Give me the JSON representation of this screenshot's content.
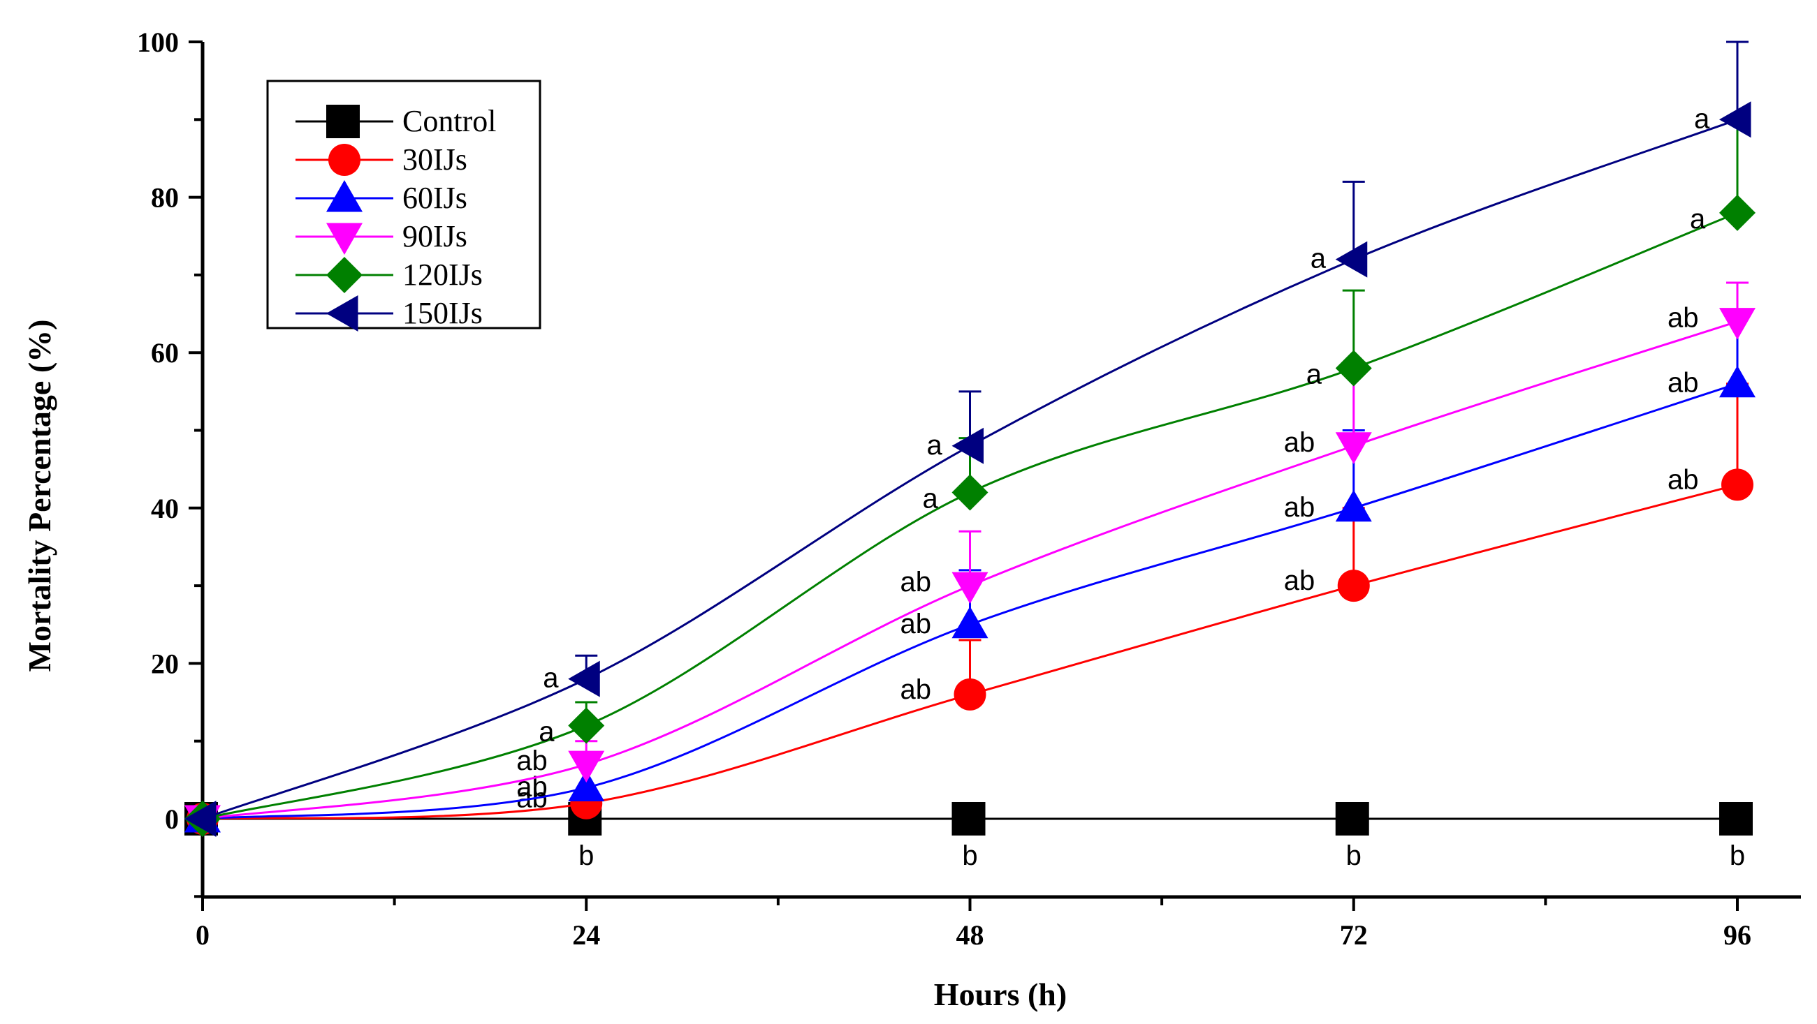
{
  "chart_data": {
    "type": "line",
    "title": "",
    "xlabel": "Hours (h)",
    "ylabel": "Mortality Percentage (%)",
    "xlim": [
      0,
      100
    ],
    "ylim": [
      -10,
      100
    ],
    "xticks": [
      0,
      24,
      48,
      72,
      96
    ],
    "yticks": [
      0,
      20,
      40,
      60,
      80,
      100
    ],
    "x": [
      0,
      24,
      48,
      72,
      96
    ],
    "legend_position": "top-left",
    "series": [
      {
        "name": "Control",
        "color": "#000000",
        "marker": "square",
        "values": [
          0,
          0,
          0,
          0,
          0
        ],
        "error": [
          0,
          0,
          0,
          0,
          0
        ],
        "letters": [
          "",
          "b",
          "b",
          "b",
          "b"
        ]
      },
      {
        "name": "30IJs",
        "color": "#ff0000",
        "marker": "circle",
        "values": [
          0,
          2,
          16,
          30,
          43
        ],
        "error": [
          0,
          0,
          7,
          10,
          13
        ],
        "letters": [
          "",
          "ab",
          "ab",
          "ab",
          "ab"
        ]
      },
      {
        "name": "60IJs",
        "color": "#0000ff",
        "marker": "triangle-up",
        "values": [
          0,
          4,
          25,
          40,
          56
        ],
        "error": [
          0,
          0,
          7,
          10,
          13
        ],
        "letters": [
          "",
          "ab",
          "ab",
          "ab",
          "ab"
        ]
      },
      {
        "name": "90IJs",
        "color": "#ff00ff",
        "marker": "triangle-down",
        "values": [
          0,
          7,
          30,
          48,
          64
        ],
        "error": [
          0,
          3,
          7,
          10,
          5
        ],
        "letters": [
          "",
          "ab",
          "ab",
          "ab",
          "ab"
        ]
      },
      {
        "name": "120IJs",
        "color": "#008000",
        "marker": "diamond",
        "values": [
          0,
          12,
          42,
          58,
          78
        ],
        "error": [
          0,
          3,
          7,
          10,
          12
        ],
        "letters": [
          "",
          "a",
          "a",
          "a",
          "a"
        ]
      },
      {
        "name": "150IJs",
        "color": "#000080",
        "marker": "triangle-left",
        "values": [
          0,
          18,
          48,
          72,
          90
        ],
        "error": [
          0,
          3,
          7,
          10,
          10
        ],
        "letters": [
          "",
          "a",
          "a",
          "a",
          "a"
        ]
      }
    ]
  }
}
